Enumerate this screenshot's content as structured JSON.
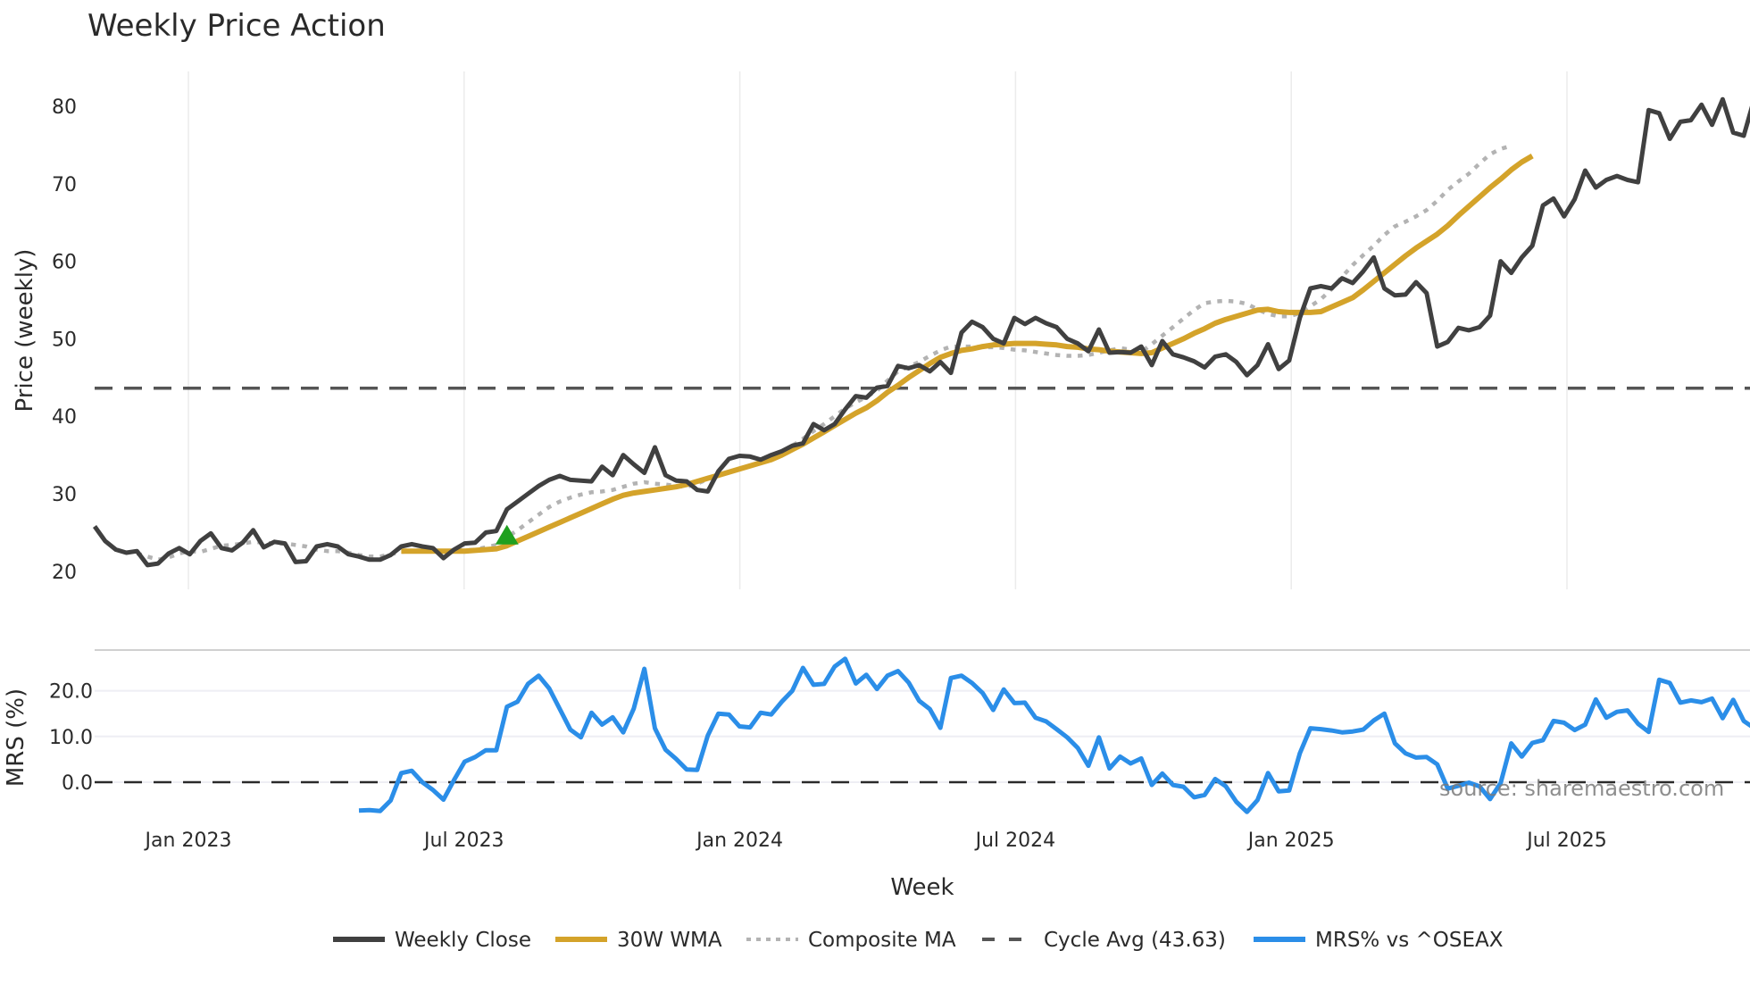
{
  "chart_data": [
    {
      "type": "line",
      "panel": "price",
      "title": "Weekly Price Action",
      "xlabel": "Week",
      "ylabel": "Price (weekly)",
      "ylim": [
        18,
        84
      ],
      "yticks": [
        20,
        30,
        40,
        50,
        60,
        70,
        80
      ],
      "xticks": [
        "Jan 2023",
        "Jul 2023",
        "Jan 2024",
        "Jul 2024",
        "Jan 2025",
        "Jul 2025"
      ],
      "grid": "vertical",
      "x_start_week_offset_from_jan2023": -9,
      "series": [
        {
          "name": "Weekly Close",
          "color": "#404040",
          "style": "solid",
          "start_index": 0,
          "values": [
            25.8,
            23.9,
            22.8,
            22.4,
            22.6,
            20.8,
            21.0,
            22.3,
            23.0,
            22.2,
            23.9,
            24.9,
            23.0,
            22.7,
            23.7,
            25.3,
            23.1,
            23.8,
            23.6,
            21.2,
            21.3,
            23.2,
            23.5,
            23.2,
            22.2,
            21.9,
            21.5,
            21.5,
            22.1,
            23.2,
            23.5,
            23.2,
            23.0,
            21.7,
            22.8,
            23.6,
            23.7,
            25.0,
            25.2,
            28.0,
            29.0,
            30.0,
            31.0,
            31.8,
            32.3,
            31.8,
            31.7,
            31.6,
            33.5,
            32.4,
            35.0,
            33.8,
            32.7,
            36.0,
            32.4,
            31.7,
            31.6,
            30.5,
            30.3,
            32.9,
            34.5,
            34.9,
            34.8,
            34.4,
            35.0,
            35.5,
            36.2,
            36.5,
            39.0,
            38.2,
            39.0,
            40.9,
            42.6,
            42.4,
            43.7,
            43.9,
            46.5,
            46.2,
            46.6,
            45.8,
            47.0,
            45.6,
            50.8,
            52.2,
            51.5,
            50.0,
            49.4,
            52.7,
            51.9,
            52.7,
            52.0,
            51.5,
            50.0,
            49.4,
            48.4,
            51.2,
            48.2,
            48.3,
            48.2,
            49.0,
            46.6,
            49.7,
            48.0,
            47.6,
            47.1,
            46.3,
            47.7,
            48.0,
            47.0,
            45.3,
            46.6,
            49.3,
            46.1,
            47.2,
            52.7,
            56.5,
            56.8,
            56.5,
            57.8,
            57.2,
            58.7,
            60.5,
            56.5,
            55.6,
            55.7,
            57.3,
            55.9,
            49.0,
            49.6,
            51.4,
            51.1,
            51.5,
            53.0,
            60.0,
            58.5,
            60.5,
            62.0,
            67.2,
            68.1,
            65.8,
            68.0,
            71.7,
            69.5,
            70.5,
            71.0,
            70.5,
            70.2,
            79.5,
            79.1,
            75.8,
            78.0,
            78.2,
            80.2,
            77.6,
            80.9,
            76.6,
            76.2,
            81.0
          ]
        },
        {
          "name": "30W WMA",
          "color": "#d4a32a",
          "style": "solid",
          "start_index": 29,
          "values": [
            22.6,
            22.6,
            22.6,
            22.6,
            22.6,
            22.6,
            22.6,
            22.7,
            22.8,
            22.9,
            23.3,
            23.9,
            24.5,
            25.1,
            25.7,
            26.3,
            26.9,
            27.5,
            28.1,
            28.7,
            29.3,
            29.8,
            30.1,
            30.3,
            30.5,
            30.7,
            30.9,
            31.2,
            31.6,
            32.0,
            32.4,
            32.8,
            33.2,
            33.6,
            34.0,
            34.4,
            35.0,
            35.7,
            36.4,
            37.2,
            38.0,
            38.8,
            39.6,
            40.4,
            41.1,
            42.0,
            43.1,
            44.0,
            45.0,
            45.9,
            46.8,
            47.6,
            48.1,
            48.5,
            48.7,
            49.0,
            49.2,
            49.3,
            49.4,
            49.4,
            49.4,
            49.3,
            49.2,
            49.0,
            48.9,
            48.7,
            48.6,
            48.4,
            48.3,
            48.2,
            48.1,
            48.2,
            48.8,
            49.4,
            50.0,
            50.7,
            51.3,
            52.0,
            52.5,
            52.9,
            53.3,
            53.7,
            53.8,
            53.5,
            53.4,
            53.4,
            53.4,
            53.5,
            54.1,
            54.7,
            55.3,
            56.3,
            57.4,
            58.5,
            59.6,
            60.7,
            61.7,
            62.6,
            63.5,
            64.6,
            65.9,
            67.1,
            68.3,
            69.5,
            70.6,
            71.8,
            72.8,
            73.6
          ]
        },
        {
          "name": "Composite MA",
          "color": "#b3b3b3",
          "style": "dotted",
          "start_index": 4,
          "values": [
            22.3,
            21.9,
            21.5,
            21.8,
            22.3,
            22.6,
            22.5,
            22.9,
            23.3,
            23.4,
            23.6,
            23.8,
            23.7,
            23.6,
            23.6,
            23.4,
            23.2,
            22.8,
            22.6,
            22.6,
            22.4,
            22.1,
            21.9,
            21.9,
            22.2,
            22.5,
            22.6,
            22.6,
            22.6,
            22.6,
            22.7,
            22.7,
            22.8,
            23.1,
            23.4,
            24.4,
            25.3,
            26.3,
            27.3,
            28.3,
            29.0,
            29.5,
            29.9,
            30.2,
            30.3,
            30.5,
            30.9,
            31.3,
            31.5,
            31.3,
            31.2,
            31.0,
            30.9,
            31.3,
            31.9,
            32.4,
            32.8,
            33.2,
            33.6,
            34.1,
            34.7,
            35.3,
            36.2,
            37.1,
            38.1,
            39.0,
            40.0,
            41.0,
            41.8,
            42.5,
            43.3,
            44.6,
            45.8,
            46.4,
            47.0,
            47.8,
            48.5,
            49.0,
            49.0,
            49.0,
            48.9,
            48.9,
            48.8,
            48.6,
            48.5,
            48.3,
            48.1,
            47.9,
            47.8,
            47.8,
            47.9,
            48.2,
            48.5,
            48.8,
            48.6,
            48.3,
            49.3,
            50.4,
            51.5,
            52.6,
            53.7,
            54.6,
            54.8,
            54.9,
            54.8,
            54.5,
            53.8,
            53.2,
            52.9,
            52.9,
            53.3,
            54.2,
            55.1,
            56.4,
            58.0,
            59.5,
            60.8,
            62.0,
            63.4,
            64.5,
            65.1,
            65.8,
            66.6,
            67.8,
            69.2,
            70.3,
            71.3,
            72.6,
            73.8,
            74.5,
            74.9
          ]
        },
        {
          "name": "Cycle Avg (43.63)",
          "color": "#555555",
          "style": "dashed",
          "constant": 43.63
        }
      ],
      "markers": [
        {
          "type": "triangle-up",
          "color": "#1fa01f",
          "week_index": 39,
          "value": 24.5
        }
      ]
    },
    {
      "type": "line",
      "panel": "mrs",
      "ylabel": "MRS (%)",
      "ylim": [
        -9,
        28
      ],
      "yticks": [
        "0.0",
        "10.0",
        "20.0"
      ],
      "ytick_values": [
        0,
        10,
        20
      ],
      "series": [
        {
          "name": "MRS% vs ^OSEAX",
          "color": "#2b8ee8",
          "style": "solid",
          "start_index": 25,
          "values": [
            -6.2,
            -6.1,
            -6.3,
            -4.0,
            2.0,
            2.5,
            0.0,
            -1.7,
            -3.8,
            0.5,
            4.5,
            5.5,
            7.0,
            7.0,
            16.5,
            17.6,
            21.5,
            23.3,
            20.5,
            16.0,
            11.5,
            9.8,
            15.2,
            12.6,
            14.2,
            10.9,
            16.1,
            24.8,
            11.8,
            7.1,
            5.1,
            2.8,
            2.7,
            10.2,
            15.0,
            14.8,
            12.2,
            12.0,
            15.2,
            14.8,
            17.6,
            20.0,
            25.0,
            21.3,
            21.5,
            25.3,
            27.0,
            21.6,
            23.5,
            20.4,
            23.3,
            24.3,
            21.8,
            17.8,
            16.0,
            11.9,
            22.8,
            23.3,
            21.7,
            19.5,
            15.8,
            20.3,
            17.3,
            17.4,
            14.1,
            13.3,
            11.6,
            9.8,
            7.5,
            3.6,
            9.8,
            3.0,
            5.6,
            4.1,
            5.2,
            -0.6,
            1.9,
            -0.6,
            -1.0,
            -3.3,
            -2.8,
            0.7,
            -0.9,
            -4.3,
            -6.5,
            -3.9,
            2.0,
            -2.0,
            -1.8,
            6.3,
            11.8,
            11.6,
            11.3,
            10.9,
            11.1,
            11.5,
            13.5,
            15.0,
            8.5,
            6.3,
            5.4,
            5.5,
            3.9,
            -1.4,
            -0.8,
            -0.1,
            -0.9,
            -3.7,
            -0.2,
            8.5,
            5.6,
            8.6,
            9.2,
            13.4,
            13.0,
            11.4,
            12.6,
            18.1,
            14.1,
            15.4,
            15.7,
            12.8,
            11.0,
            22.4,
            21.7,
            17.4,
            17.9,
            17.5,
            18.3,
            14.0,
            18.0,
            13.4,
            11.8,
            16.2
          ]
        },
        {
          "name": "zero-line",
          "color": "#2a2a2a",
          "style": "dashed",
          "constant": 0
        }
      ]
    }
  ],
  "legend": {
    "position": "bottom",
    "items": [
      {
        "label": "Weekly Close",
        "color": "#404040",
        "style": "solid"
      },
      {
        "label": "30W WMA",
        "color": "#d4a32a",
        "style": "solid"
      },
      {
        "label": "Composite MA",
        "color": "#b3b3b3",
        "style": "dotted"
      },
      {
        "label": "Cycle Avg (43.63)",
        "color": "#555555",
        "style": "dashed"
      },
      {
        "label": "MRS% vs ^OSEAX",
        "color": "#2b8ee8",
        "style": "solid"
      }
    ]
  },
  "annotation": {
    "source": "source: sharemaestro.com"
  }
}
